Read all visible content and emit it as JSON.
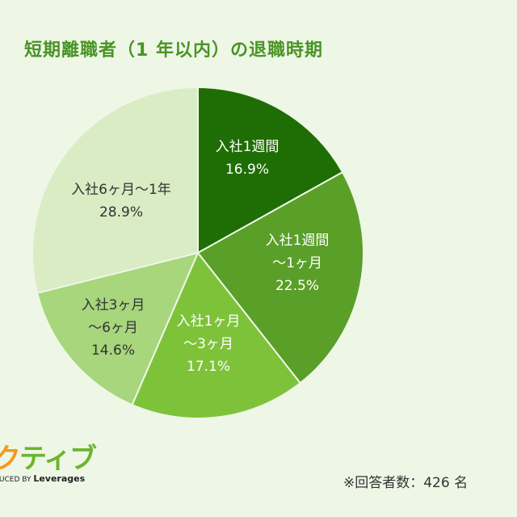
{
  "chart_data": {
    "type": "pie",
    "title": "短期離職者（1 年以内）の退職時期",
    "start": "top",
    "direction": "clockwise",
    "slices": [
      {
        "label": [
          "入社1週間"
        ],
        "value": 16.9,
        "display": "16.9%",
        "color": "#1f6e05"
      },
      {
        "label": [
          "入社1週間",
          "〜1ヶ月"
        ],
        "value": 22.5,
        "display": "22.5%",
        "color": "#5a9f28"
      },
      {
        "label": [
          "入社1ヶ月",
          "〜3ヶ月"
        ],
        "value": 17.1,
        "display": "17.1%",
        "color": "#7ec23a"
      },
      {
        "label": [
          "入社3ヶ月",
          "〜6ヶ月"
        ],
        "value": 14.6,
        "display": "14.6%",
        "color": "#a7d67c"
      },
      {
        "label": [
          "入社6ヶ月〜1年"
        ],
        "value": 28.9,
        "display": "28.9%",
        "color": "#d9ecc4"
      }
    ]
  },
  "note": "※回答者数：426 名",
  "logo": {
    "text": "クティブ",
    "byline": "DUCED BY Leverages"
  },
  "colors": {
    "background": "#eef7e6",
    "title": "#4a9426"
  }
}
